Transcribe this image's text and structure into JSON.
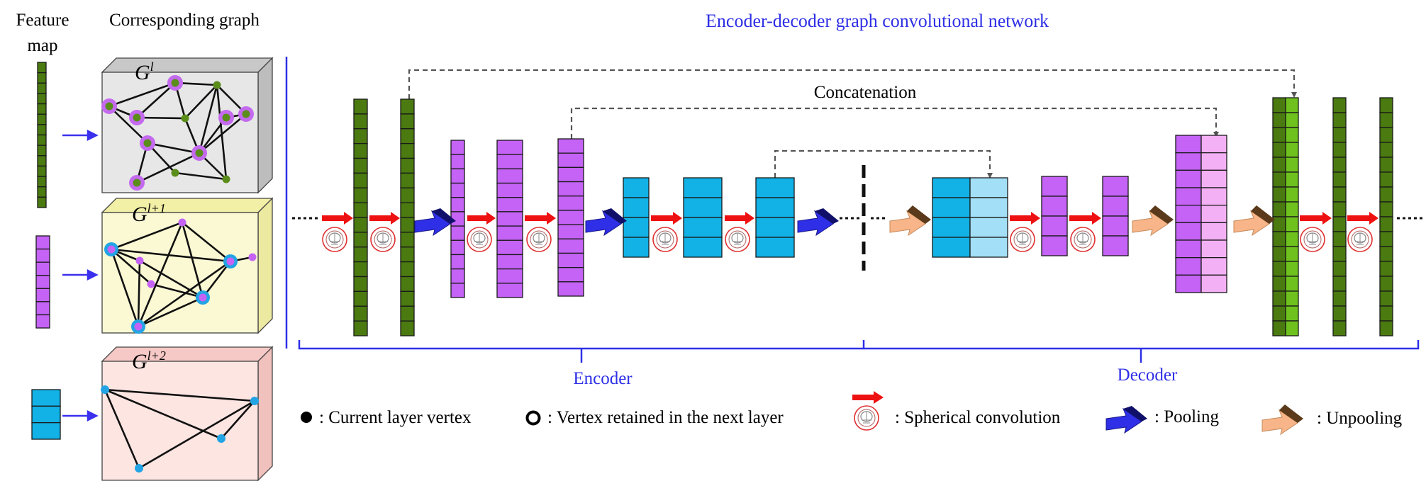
{
  "colors": {
    "green": "#4a7a10",
    "green_light": "#6fc21e",
    "purple": "#c463f5",
    "purple_light": "#f4b0f5",
    "cyan": "#12b2e6",
    "cyan_light": "#a3e0f7",
    "blue": "#2e2fe6",
    "arrow_red": "#ee1111",
    "unpool": "#f7b589",
    "vertex_green": "#5a8d1a",
    "vertex_halo": "#c46aef",
    "vertex_blue": "#22a4e4"
  },
  "left_panel": {
    "feature_map_label_line1": "Feature",
    "feature_map_label_line2": "map",
    "graph_label": "Corresponding graph",
    "graph_titles": [
      {
        "base": "G",
        "sup": "l"
      },
      {
        "base": "G",
        "sup": "l+1"
      },
      {
        "base": "G",
        "sup": "l+2"
      }
    ]
  },
  "network": {
    "title": "Encoder-decoder graph convolutional network",
    "concatenation_label": "Concatenation",
    "encoder_label": "Encoder",
    "decoder_label": "Decoder"
  },
  "legend": {
    "current_vertex": ": Current layer vertex",
    "retained_vertex": ": Vertex retained in the next layer",
    "spherical_conv": ": Spherical convolution",
    "pooling": ": Pooling",
    "unpooling": ": Unpooling"
  }
}
